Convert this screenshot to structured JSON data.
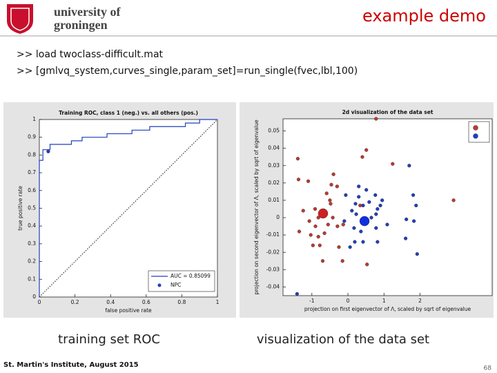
{
  "header": {
    "university": "university of",
    "city": "groningen",
    "title": "example demo"
  },
  "commands": [
    ">> load twoclass-difficult.mat",
    ">> [gmlvq_system,curves_single,param_set]=run_single(fvec,lbl,100)"
  ],
  "chart_data": [
    {
      "type": "line",
      "title": "Training ROC, class 1 (neg.) vs. all others (pos.)",
      "xlabel": "false positive rate",
      "ylabel": "true positive rate",
      "xlim": [
        0,
        1
      ],
      "ylim": [
        0,
        1
      ],
      "xticks": [
        0,
        0.2,
        0.4,
        0.6,
        0.8,
        1
      ],
      "yticks": [
        0,
        0.1,
        0.2,
        0.3,
        0.4,
        0.5,
        0.6,
        0.7,
        0.8,
        0.9,
        1
      ],
      "legend": "lower right",
      "series": [
        {
          "name": "AUC = 0.85099",
          "type": "line",
          "color": "#1f3fbf",
          "x": [
            0,
            0,
            0.02,
            0.02,
            0.06,
            0.06,
            0.18,
            0.18,
            0.24,
            0.24,
            0.38,
            0.38,
            0.52,
            0.52,
            0.62,
            0.62,
            0.82,
            0.82,
            0.9,
            0.9,
            1
          ],
          "values": [
            0,
            0.77,
            0.77,
            0.83,
            0.83,
            0.86,
            0.86,
            0.88,
            0.88,
            0.9,
            0.9,
            0.92,
            0.92,
            0.94,
            0.94,
            0.96,
            0.96,
            0.98,
            0.98,
            1,
            1
          ]
        },
        {
          "type": "line",
          "style": "dotted",
          "color": "#333333",
          "x": [
            0,
            1
          ],
          "values": [
            0,
            1
          ]
        },
        {
          "name": "NPC",
          "type": "scatter",
          "marker": "dot",
          "color": "#1f3fbf",
          "x": [
            0.05
          ],
          "values": [
            0.82
          ]
        }
      ]
    },
    {
      "type": "scatter",
      "title": "2d visualization of the data set",
      "xlabel": "projection on first eigenvector of Λ, scaled by sqrt of eigenvalue",
      "ylabel": "projection on second eigenvector of Λ, scaled by sqrt of eigenvalue",
      "xlim": [
        -1.8,
        4
      ],
      "ylim": [
        -0.045,
        0.057
      ],
      "xticks": [
        -1,
        0,
        1,
        2
      ],
      "yticks": [
        -0.04,
        -0.03,
        -0.02,
        -0.01,
        0,
        0.01,
        0.02,
        0.03,
        0.04,
        0.05
      ],
      "legend": "upper right",
      "series": [
        {
          "type": "scatter",
          "marker": "dot",
          "color": "#c0392b",
          "x": [
            -1.37,
            -1.1,
            -0.4,
            -0.46,
            -0.3,
            -0.59,
            -0.5,
            -0.91,
            -1.24,
            -0.82,
            -1.07,
            -0.42,
            -0.55,
            -0.9,
            -0.29,
            -0.13,
            -1.35,
            -1.03,
            -0.82,
            -0.65,
            -0.97,
            -0.78,
            -0.7,
            -0.25,
            0.51,
            0.4,
            1.24,
            0.34,
            0.53,
            -0.15,
            2.93,
            -1.39,
            -0.48,
            0.78
          ],
          "values": [
            0.022,
            0.021,
            0.025,
            0.019,
            0.018,
            0.014,
            0.01,
            0.005,
            0.004,
            0,
            -0.002,
            0,
            -0.004,
            -0.005,
            -0.005,
            -0.004,
            -0.008,
            -0.01,
            -0.011,
            -0.009,
            -0.016,
            -0.016,
            -0.025,
            -0.017,
            0.039,
            0.035,
            0.031,
            0.007,
            -0.027,
            -0.025,
            0.01,
            0.034,
            0.008,
            0.057
          ]
        },
        {
          "type": "scatter",
          "marker": "dot",
          "color": "#2040c0",
          "x": [
            1.7,
            0.51,
            0.76,
            -0.06,
            0.3,
            0.21,
            0.42,
            0.59,
            0.9,
            0.82,
            1.81,
            1.89,
            0.11,
            0.23,
            0.65,
            0.78,
            1.62,
            1.83,
            -0.1,
            0.17,
            0.36,
            0.78,
            1.09,
            0.19,
            0.42,
            0.06,
            0.82,
            1.6,
            1.92,
            -1.41,
            0.3,
            0.95
          ],
          "values": [
            0.03,
            0.016,
            0.013,
            0.013,
            0.012,
            0.008,
            0.007,
            0.009,
            0.007,
            0.005,
            0.013,
            0.007,
            0.004,
            0.002,
            0,
            0.002,
            -0.001,
            -0.002,
            -0.002,
            -0.006,
            -0.008,
            -0.006,
            -0.004,
            -0.014,
            -0.014,
            -0.017,
            -0.014,
            -0.012,
            -0.021,
            -0.044,
            0.018,
            0.01
          ]
        },
        {
          "type": "scatter",
          "marker": "large",
          "color": "#d02020",
          "x": [
            -0.69
          ],
          "values": [
            0.0024
          ]
        },
        {
          "type": "scatter",
          "marker": "large",
          "color": "#1030e0",
          "x": [
            0.46
          ],
          "values": [
            -0.002
          ]
        }
      ]
    }
  ],
  "captions": [
    "training set ROC",
    "visualization of the data set"
  ],
  "footer": {
    "left": "St. Martin's Institute, August 2015",
    "page": "68"
  }
}
